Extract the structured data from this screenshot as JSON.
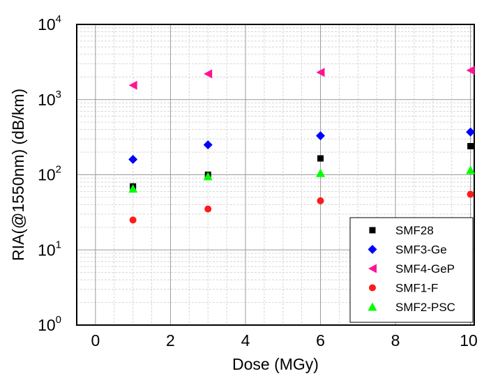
{
  "chart_data": {
    "type": "scatter",
    "xlabel": "Dose (MGy)",
    "ylabel": "RIA(@1550nm) (dB/km)",
    "x_ticks": [
      "0",
      "2",
      "4",
      "6",
      "8",
      "10"
    ],
    "y_ticks": [
      {
        "base": "10",
        "exp": "0"
      },
      {
        "base": "10",
        "exp": "1"
      },
      {
        "base": "10",
        "exp": "2"
      },
      {
        "base": "10",
        "exp": "3"
      },
      {
        "base": "10",
        "exp": "4"
      }
    ],
    "xlim": [
      -0.5,
      10.1
    ],
    "ylim": [
      1,
      10000
    ],
    "y_scale": "log",
    "grid": true,
    "legend_position": "bottom-right",
    "series": [
      {
        "name": "SMF28",
        "marker": "square",
        "color": "#000000",
        "points": [
          [
            1,
            70
          ],
          [
            3,
            100
          ],
          [
            6,
            165
          ],
          [
            10,
            240
          ]
        ]
      },
      {
        "name": "SMF3-Ge",
        "marker": "diamond",
        "color": "#0000ff",
        "points": [
          [
            1,
            160
          ],
          [
            3,
            250
          ],
          [
            6,
            330
          ],
          [
            10,
            370
          ]
        ]
      },
      {
        "name": "SMF4-GeP",
        "marker": "triangle-left",
        "color": "#ff1493",
        "points": [
          [
            1,
            1550
          ],
          [
            3,
            2200
          ],
          [
            6,
            2300
          ],
          [
            10,
            2450
          ]
        ]
      },
      {
        "name": "SMF1-F",
        "marker": "circle",
        "color": "#ff1a1a",
        "points": [
          [
            1,
            25
          ],
          [
            3,
            35
          ],
          [
            6,
            45
          ],
          [
            10,
            55
          ]
        ]
      },
      {
        "name": "SMF2-PSC",
        "marker": "triangle-up",
        "color": "#00ff00",
        "points": [
          [
            1,
            65
          ],
          [
            3,
            95
          ],
          [
            6,
            105
          ],
          [
            10,
            115
          ]
        ]
      }
    ]
  }
}
